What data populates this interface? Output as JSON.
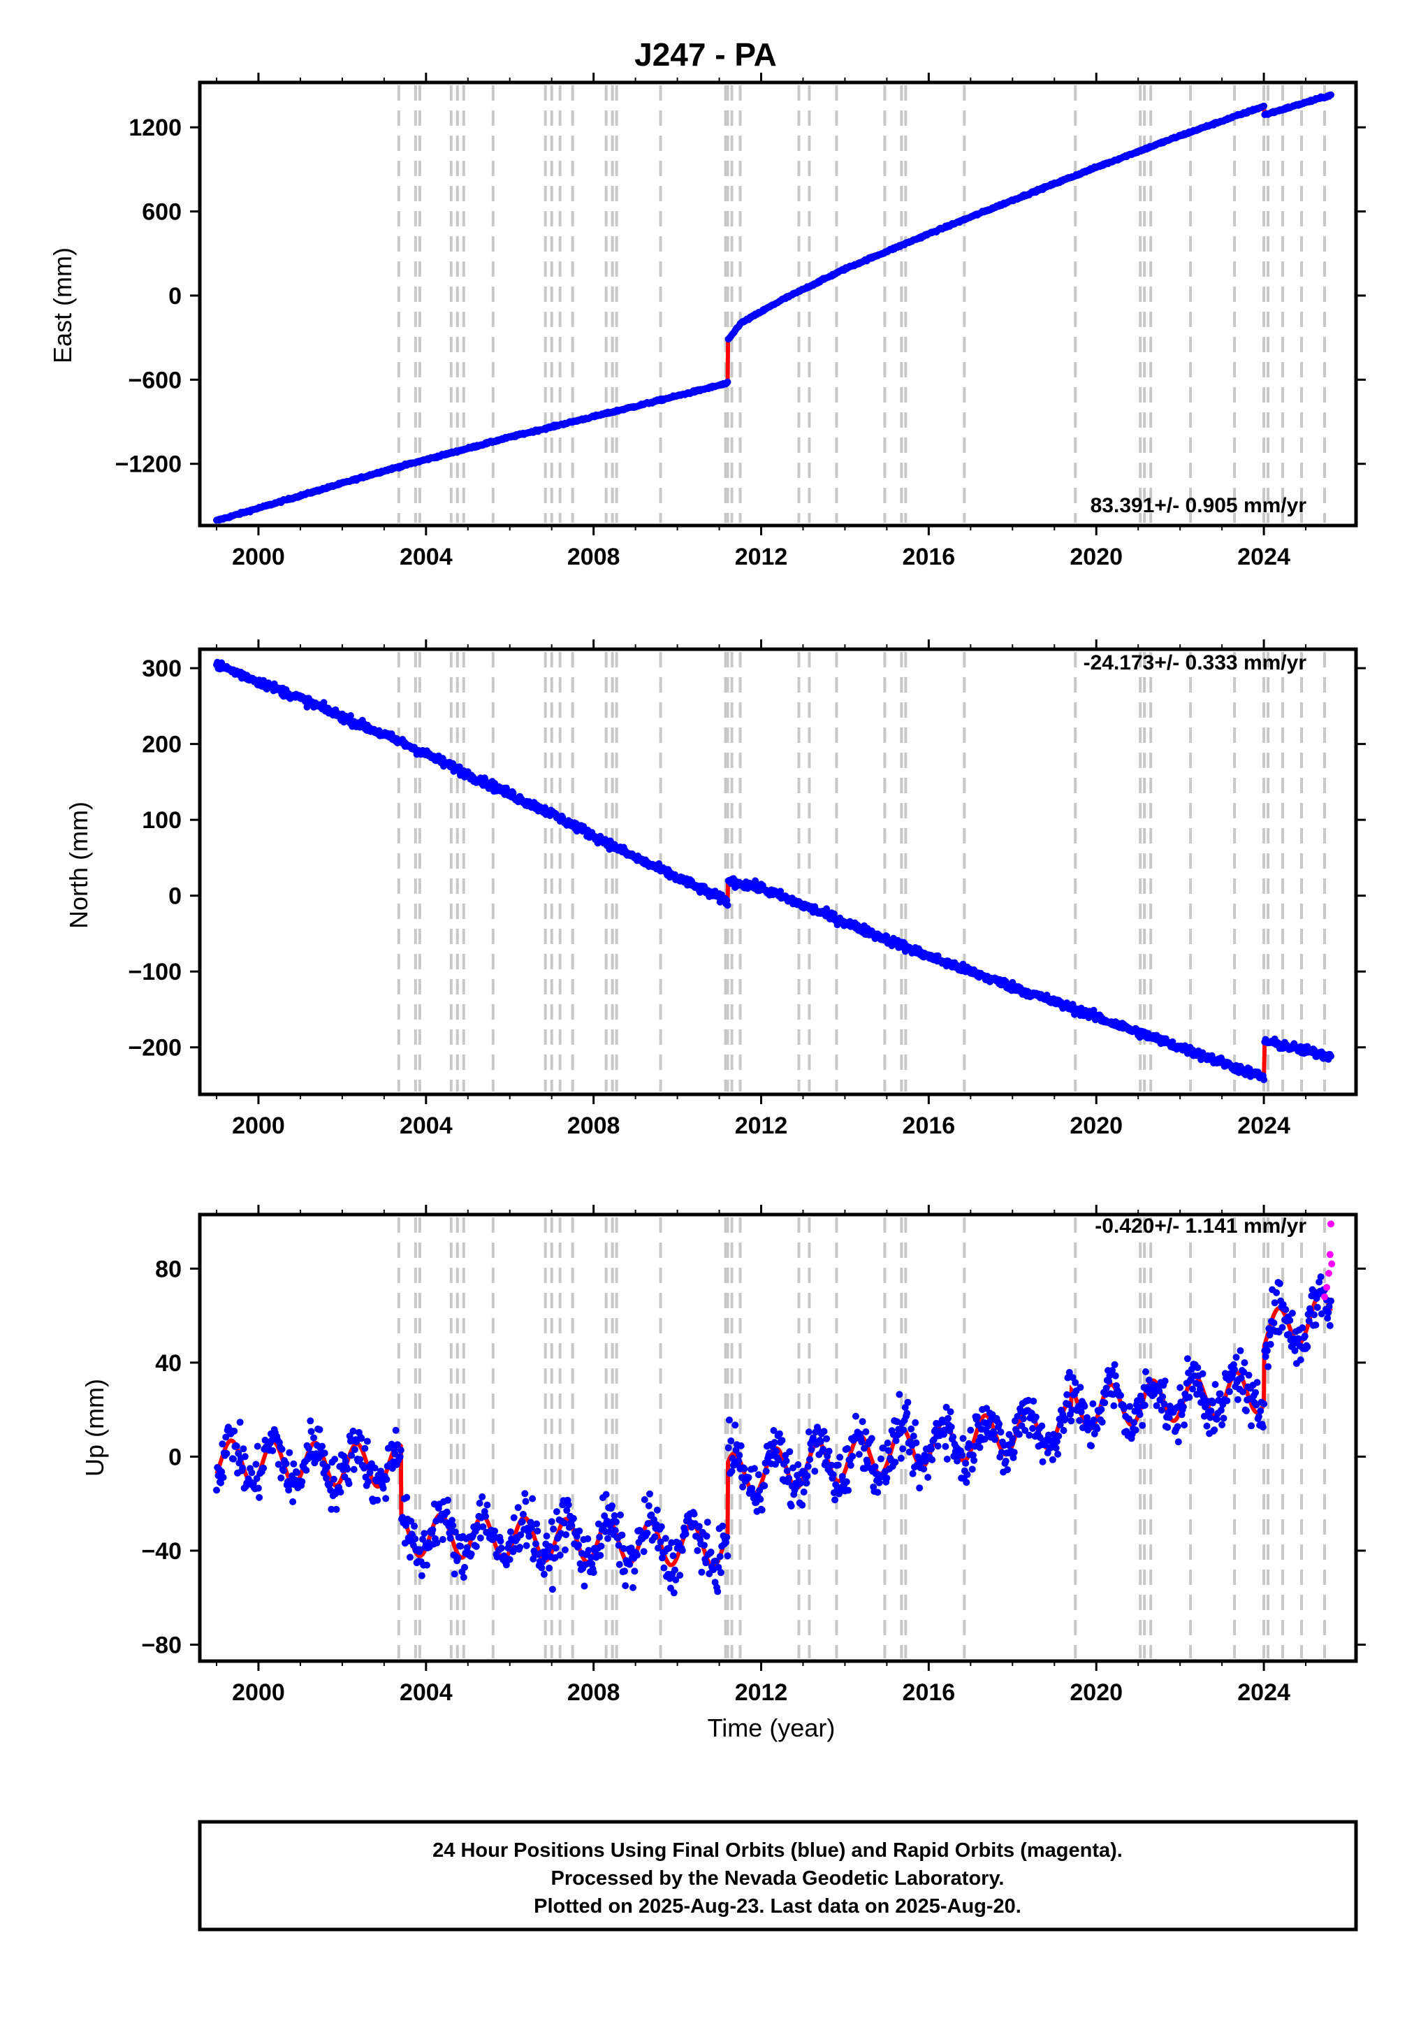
{
  "title": "J247 - PA",
  "xlabel": "Time (year)",
  "footer": {
    "line1": "24 Hour Positions Using Final Orbits (blue) and Rapid Orbits (magenta).",
    "line2": "Processed by the Nevada Geodetic Laboratory.",
    "line3": "Plotted on 2025-Aug-23. Last data on 2025-Aug-20."
  },
  "colors": {
    "final": "#0000ff",
    "rapid": "#ff00ff",
    "model": "#ff0000",
    "events": "#c8c8c8"
  },
  "chart_data": [
    {
      "type": "scatter",
      "name": "east",
      "ylabel": "East (mm)",
      "rate_text": "83.391+/- 0.905 mm/yr",
      "xlim": [
        1998.6,
        2026.2
      ],
      "ylim": [
        -1640,
        1520
      ],
      "xticks": [
        2000,
        2004,
        2008,
        2012,
        2016,
        2020,
        2024
      ],
      "yticks": [
        -1200,
        -600,
        0,
        600,
        1200
      ],
      "model_points": [
        [
          1999.0,
          -1605
        ],
        [
          2003.0,
          -1250
        ],
        [
          2006.0,
          -1010
        ],
        [
          2009.0,
          -790
        ],
        [
          2011.2,
          -625
        ],
        [
          2011.21,
          -320
        ],
        [
          2011.5,
          -200
        ],
        [
          2012.5,
          -30
        ],
        [
          2014.0,
          190
        ],
        [
          2016.0,
          440
        ],
        [
          2018.0,
          680
        ],
        [
          2020.0,
          915
        ],
        [
          2022.0,
          1140
        ],
        [
          2024.0,
          1350
        ],
        [
          2024.02,
          1290
        ],
        [
          2025.6,
          1430
        ]
      ]
    },
    {
      "type": "scatter",
      "name": "north",
      "ylabel": "North (mm)",
      "rate_text": "-24.173+/- 0.333 mm/yr",
      "xlim": [
        1998.6,
        2026.2
      ],
      "ylim": [
        -262,
        325
      ],
      "xticks": [
        2000,
        2004,
        2008,
        2012,
        2016,
        2020,
        2024
      ],
      "yticks": [
        -200,
        -100,
        0,
        100,
        200,
        300
      ],
      "model_points": [
        [
          1999.0,
          305
        ],
        [
          2001.0,
          260
        ],
        [
          2003.0,
          212
        ],
        [
          2003.5,
          200
        ],
        [
          2005.0,
          160
        ],
        [
          2007.0,
          108
        ],
        [
          2009.0,
          50
        ],
        [
          2011.2,
          -8
        ],
        [
          2011.21,
          20
        ],
        [
          2012.0,
          10
        ],
        [
          2014.0,
          -35
        ],
        [
          2016.0,
          -80
        ],
        [
          2018.0,
          -120
        ],
        [
          2020.0,
          -160
        ],
        [
          2022.0,
          -200
        ],
        [
          2024.0,
          -240
        ],
        [
          2024.02,
          -192
        ],
        [
          2025.6,
          -212
        ]
      ]
    },
    {
      "type": "scatter",
      "name": "up",
      "ylabel": "Up (mm)",
      "rate_text": "-0.420+/- 1.141 mm/yr",
      "xlim": [
        1998.6,
        2026.2
      ],
      "ylim": [
        -87,
        103
      ],
      "xticks": [
        2000,
        2004,
        2008,
        2012,
        2016,
        2020,
        2024
      ],
      "yticks": [
        -80,
        -40,
        0,
        40,
        80
      ],
      "trend_points": [
        [
          1999.0,
          -2
        ],
        [
          2003.4,
          -4
        ],
        [
          2003.41,
          -33
        ],
        [
          2011.2,
          -38
        ],
        [
          2011.21,
          -8
        ],
        [
          2013.0,
          -4
        ],
        [
          2016.0,
          5
        ],
        [
          2019.4,
          14
        ],
        [
          2019.41,
          20
        ],
        [
          2024.0,
          28
        ],
        [
          2024.01,
          52
        ],
        [
          2025.6,
          62
        ]
      ],
      "seasonal_amplitude_mm": 9,
      "rapid_points": [
        [
          2025.45,
          68
        ],
        [
          2025.5,
          72
        ],
        [
          2025.55,
          78
        ],
        [
          2025.58,
          86
        ],
        [
          2025.6,
          99
        ],
        [
          2025.62,
          82
        ]
      ]
    }
  ],
  "event_lines": [
    2003.35,
    2003.75,
    2003.85,
    2004.6,
    2004.75,
    2004.9,
    2005.6,
    2006.85,
    2007.0,
    2007.2,
    2007.5,
    2008.3,
    2008.45,
    2008.55,
    2009.6,
    2011.15,
    2011.2,
    2011.3,
    2011.5,
    2012.9,
    2013.15,
    2013.8,
    2014.95,
    2015.35,
    2015.45,
    2016.85,
    2019.5,
    2021.05,
    2021.15,
    2021.3,
    2022.25,
    2023.3,
    2024.0,
    2024.1,
    2024.45,
    2024.9,
    2025.45
  ],
  "scatter_noise_mm": {
    "east": 5,
    "north": 4,
    "up": 8
  }
}
